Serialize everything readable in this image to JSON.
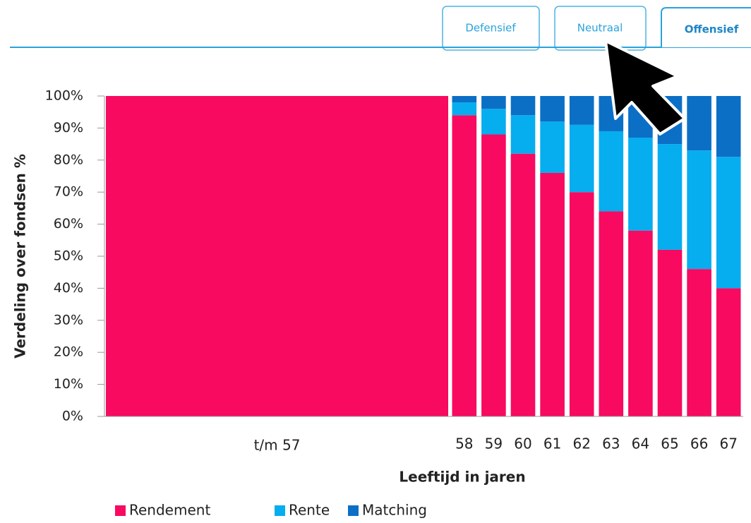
{
  "tabs": [
    "Defensief",
    "Neutraal",
    "Offensief"
  ],
  "chart_data": {
    "type": "bar",
    "stacked": true,
    "xlabel": "Leeftijd in jaren",
    "ylabel": "Verdeling over fondsen %",
    "categories": [
      "t/m 57",
      "58",
      "59",
      "60",
      "61",
      "62",
      "63",
      "64",
      "65",
      "66",
      "67"
    ],
    "series": [
      {
        "name": "Rendement",
        "color": "#f70a60",
        "values": [
          100,
          94,
          88,
          82,
          76,
          70,
          64,
          58,
          52,
          46,
          40
        ]
      },
      {
        "name": "Rente",
        "color": "#06adef",
        "values": [
          0,
          4,
          8,
          12,
          16,
          21,
          25,
          29,
          33,
          37,
          41
        ]
      },
      {
        "name": "Matching",
        "color": "#0b6fc6",
        "values": [
          0,
          2,
          4,
          6,
          8,
          9,
          11,
          13,
          15,
          17,
          19
        ]
      }
    ],
    "ylim": [
      0,
      100
    ],
    "yticks": [
      {
        "value": 0,
        "label": "0%"
      },
      {
        "value": 10,
        "label": "10%"
      },
      {
        "value": 20,
        "label": "20%"
      },
      {
        "value": 30,
        "label": "30%"
      },
      {
        "value": 40,
        "label": "40%"
      },
      {
        "value": 50,
        "label": "50%"
      },
      {
        "value": 60,
        "label": "60%"
      },
      {
        "value": 70,
        "label": "70%"
      },
      {
        "value": 80,
        "label": "80%"
      },
      {
        "value": 90,
        "label": "90%"
      },
      {
        "value": 100,
        "label": "100%"
      }
    ],
    "legend": "bottom-left",
    "grid": false
  }
}
